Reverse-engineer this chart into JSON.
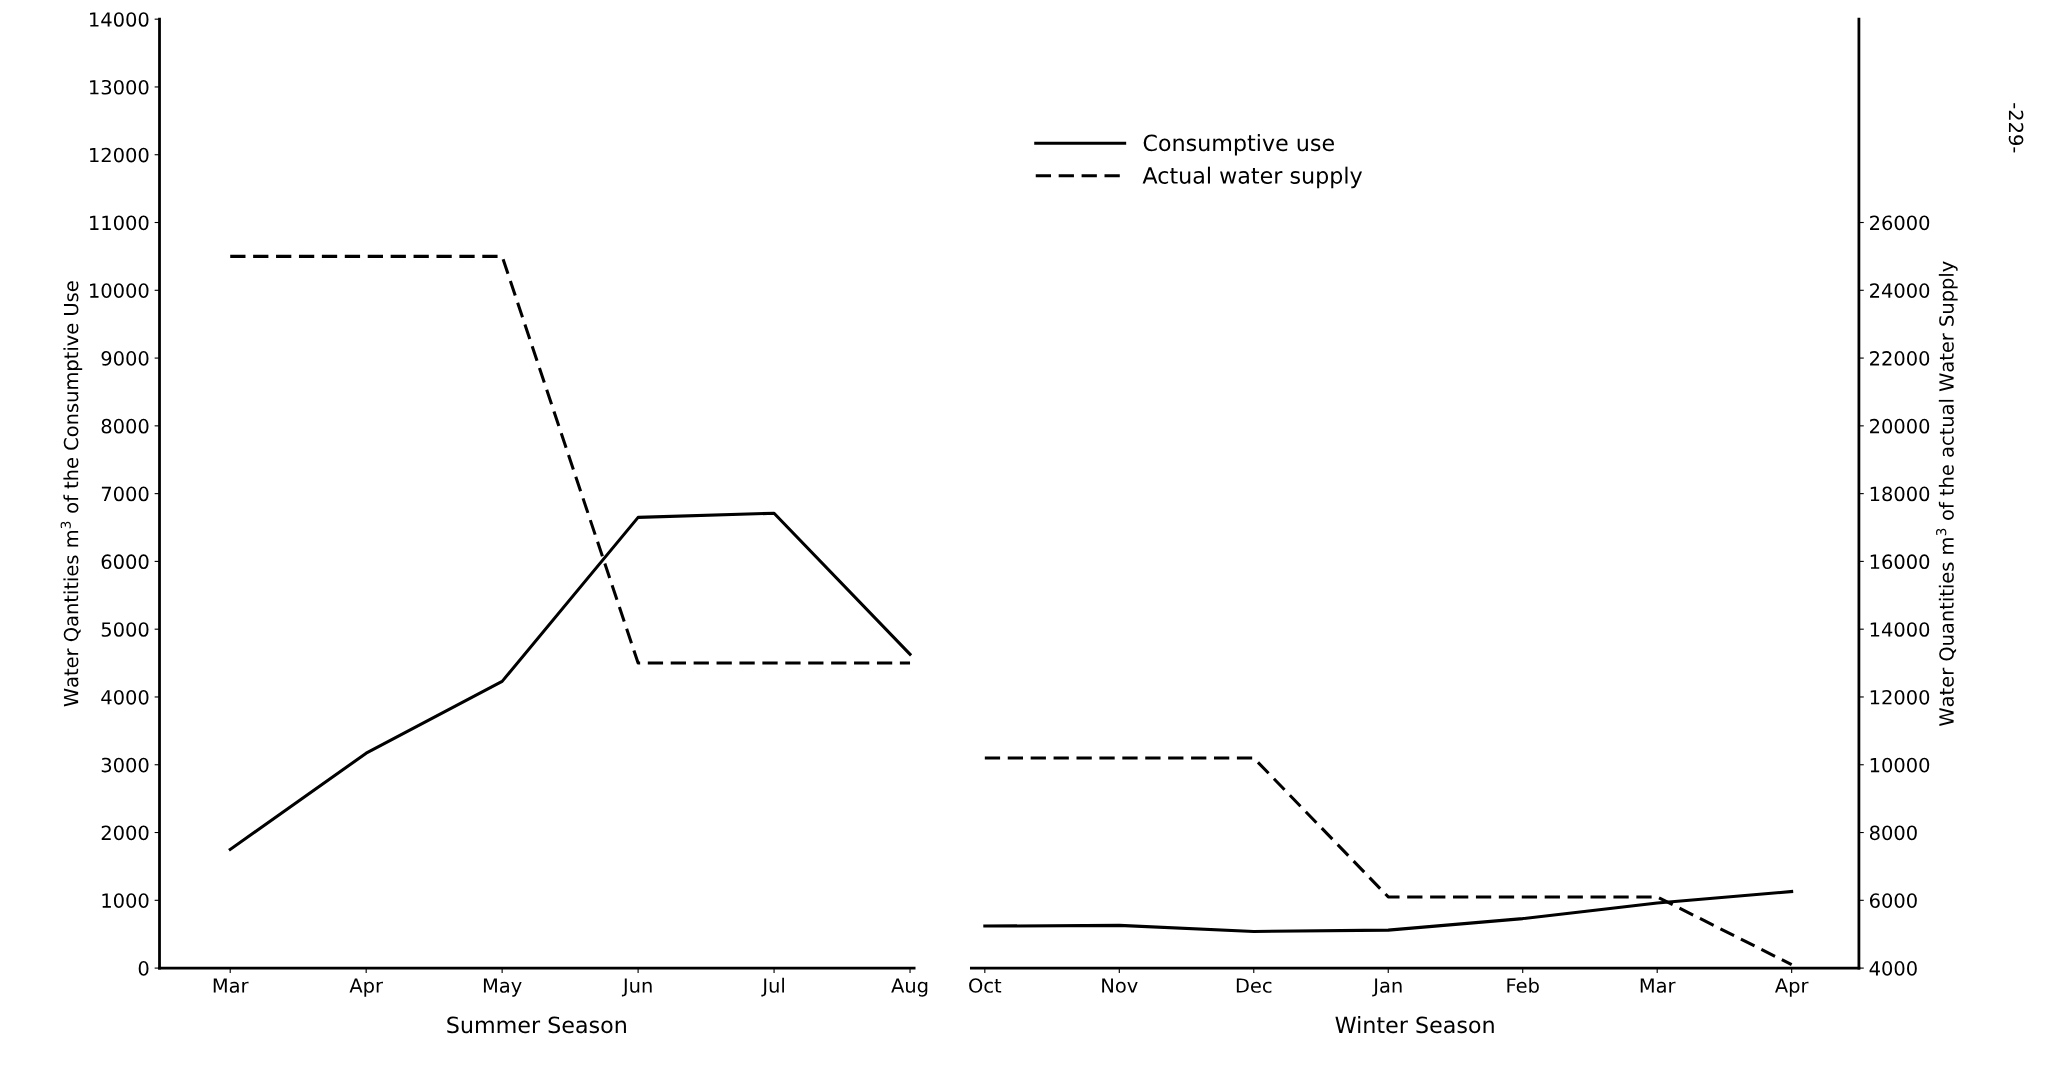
{
  "chart_data": [
    {
      "type": "line",
      "categories": [
        "Mar",
        "Apr",
        "May",
        "Jun",
        "Jul",
        "Aug"
      ],
      "xlabel": "Summer Season",
      "ylabel": "Water Qantities m$^{3}$ of the Consumptive Use",
      "ylim": [
        0,
        14000
      ],
      "yticks": [
        0,
        1000,
        2000,
        3000,
        4000,
        5000,
        6000,
        7000,
        8000,
        9000,
        10000,
        11000,
        12000,
        13000,
        14000
      ],
      "y2lim": [
        4000,
        32000
      ],
      "tick_labels": [
        "x",
        "y"
      ],
      "grid": false,
      "legend": false,
      "series": [
        {
          "color": "#000000",
          "line_style": "solid",
          "values": [
            1750,
            3170,
            4230,
            6650,
            6710,
            4630
          ]
        },
        {
          "color": "#000000",
          "line_style": "dashed",
          "axis": "y2",
          "values": [
            25000,
            25000,
            25000,
            13000,
            13000,
            13000
          ]
        }
      ]
    },
    {
      "type": "line",
      "categories": [
        "Oct",
        "Nov",
        "Dec",
        "Jan",
        "Feb",
        "Mar",
        "Apr"
      ],
      "xlabel": "Winter Season",
      "y2label": "Water Quantities m$^{3}$ of the actual Water Supply",
      "ylim": [
        0,
        14000
      ],
      "y2lim": [
        4000,
        32000
      ],
      "y2ticks": [
        4000,
        6000,
        8000,
        10000,
        12000,
        14000,
        16000,
        18000,
        20000,
        22000,
        24000,
        26000
      ],
      "tick_labels": [
        "x",
        "y2"
      ],
      "grid": false,
      "legend": "top left",
      "annotations": [
        "-229-"
      ],
      "series": [
        {
          "name": "Consumptive use",
          "color": "#000000",
          "line_style": "solid",
          "values": [
            620,
            630,
            540,
            560,
            730,
            960,
            1130
          ]
        },
        {
          "name": "Actual water supply",
          "color": "#000000",
          "line_style": "dashed",
          "axis": "y2",
          "values": [
            10200,
            10200,
            10200,
            6100,
            6100,
            6100,
            4100
          ]
        }
      ]
    }
  ]
}
